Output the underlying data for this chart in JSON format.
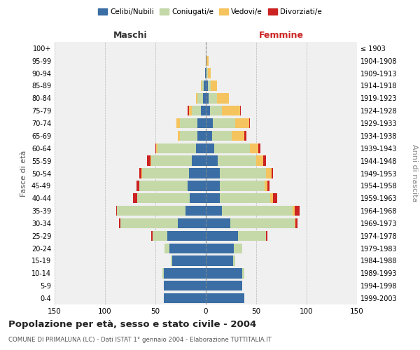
{
  "age_groups": [
    "0-4",
    "5-9",
    "10-14",
    "15-19",
    "20-24",
    "25-29",
    "30-34",
    "35-39",
    "40-44",
    "45-49",
    "50-54",
    "55-59",
    "60-64",
    "65-69",
    "70-74",
    "75-79",
    "80-84",
    "85-89",
    "90-94",
    "95-99",
    "100+"
  ],
  "birth_years": [
    "1999-2003",
    "1994-1998",
    "1989-1993",
    "1984-1988",
    "1979-1983",
    "1974-1978",
    "1969-1973",
    "1964-1968",
    "1959-1963",
    "1954-1958",
    "1949-1953",
    "1944-1948",
    "1939-1943",
    "1934-1938",
    "1929-1933",
    "1924-1928",
    "1919-1923",
    "1914-1918",
    "1909-1913",
    "1904-1908",
    "≤ 1903"
  ],
  "maschi": {
    "celibe": [
      42,
      42,
      42,
      33,
      36,
      38,
      28,
      20,
      16,
      18,
      17,
      14,
      10,
      8,
      8,
      5,
      3,
      2,
      1,
      0,
      0
    ],
    "coniugato": [
      0,
      0,
      1,
      2,
      5,
      15,
      57,
      68,
      52,
      48,
      46,
      40,
      38,
      18,
      18,
      9,
      5,
      2,
      0,
      0,
      0
    ],
    "vedovo": [
      0,
      0,
      0,
      0,
      0,
      0,
      0,
      0,
      0,
      0,
      1,
      1,
      1,
      2,
      3,
      3,
      2,
      1,
      0,
      0,
      0
    ],
    "divorziato": [
      0,
      0,
      0,
      0,
      0,
      1,
      1,
      1,
      4,
      3,
      2,
      3,
      1,
      0,
      0,
      1,
      0,
      0,
      0,
      0,
      0
    ]
  },
  "femmine": {
    "nubile": [
      38,
      36,
      36,
      27,
      28,
      32,
      24,
      16,
      14,
      14,
      14,
      12,
      8,
      6,
      7,
      4,
      3,
      2,
      1,
      1,
      0
    ],
    "coniugata": [
      0,
      0,
      2,
      2,
      8,
      28,
      64,
      70,
      50,
      44,
      46,
      38,
      36,
      20,
      22,
      12,
      8,
      3,
      1,
      0,
      0
    ],
    "vedova": [
      0,
      0,
      0,
      0,
      0,
      0,
      1,
      2,
      3,
      3,
      5,
      7,
      8,
      12,
      14,
      18,
      12,
      6,
      3,
      2,
      0
    ],
    "divorziata": [
      0,
      0,
      0,
      0,
      0,
      1,
      2,
      5,
      4,
      2,
      2,
      3,
      2,
      2,
      1,
      1,
      0,
      0,
      0,
      0,
      0
    ]
  },
  "colors": {
    "celibe": "#3a6ea5",
    "coniugato": "#c5d9a8",
    "vedovo": "#f5c45e",
    "divorziato": "#cc2222"
  },
  "title": "Popolazione per età, sesso e stato civile - 2004",
  "subtitle": "COMUNE DI PRIMALUNA (LC) - Dati ISTAT 1° gennaio 2004 - Elaborazione TUTTITALIA.IT",
  "xlabel_maschi": "Maschi",
  "xlabel_femmine": "Femmine",
  "ylabel": "Fasce di età",
  "ylabel_right": "Anni di nascita",
  "xlim": 150,
  "legend_labels": [
    "Celibi/Nubili",
    "Coniugati/e",
    "Vedovi/e",
    "Divorziati/e"
  ],
  "bg_color": "#f0f0f0"
}
